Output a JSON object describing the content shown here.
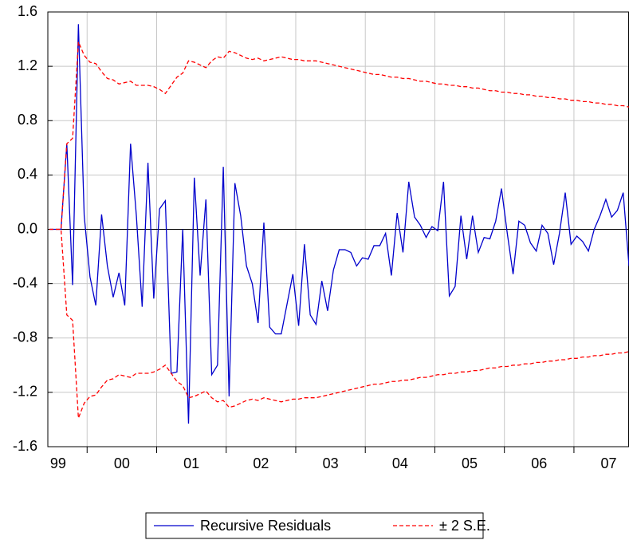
{
  "chart_data": {
    "type": "line",
    "categories": [
      null,
      "99",
      null,
      null,
      null,
      null,
      null,
      null,
      null,
      null,
      null,
      null,
      "00",
      null,
      null,
      null,
      null,
      null,
      null,
      null,
      null,
      null,
      null,
      null,
      "01",
      null,
      null,
      null,
      null,
      null,
      null,
      null,
      null,
      null,
      null,
      null,
      "02",
      null,
      null,
      null,
      null,
      null,
      null,
      null,
      null,
      null,
      null,
      null,
      "03",
      null,
      null,
      null,
      null,
      null,
      null,
      null,
      null,
      null,
      null,
      null,
      "04",
      null,
      null,
      null,
      null,
      null,
      null,
      null,
      null,
      null,
      null,
      null,
      "05",
      null,
      null,
      null,
      null,
      null,
      null,
      null,
      null,
      null,
      null,
      null,
      "06",
      null,
      null,
      null,
      null,
      null,
      null,
      null,
      null,
      null,
      null,
      null,
      "07",
      null,
      null,
      null,
      null
    ],
    "series": [
      {
        "name": "Recursive Residuals",
        "color": "#0000cc",
        "values": [
          0,
          0,
          0,
          0.63,
          -0.41,
          1.51,
          0.1,
          -0.35,
          -0.56,
          0.11,
          -0.27,
          -0.5,
          -0.32,
          -0.56,
          0.63,
          0.1,
          -0.57,
          0.49,
          -0.51,
          0.15,
          0.21,
          -1.06,
          -1.05,
          0.0,
          -1.43,
          0.38,
          -0.34,
          0.22,
          -1.07,
          -1.0,
          0.46,
          -1.23,
          0.34,
          0.1,
          -0.27,
          -0.4,
          -0.69,
          0.05,
          -0.72,
          -0.77,
          -0.77,
          -0.55,
          -0.33,
          -0.71,
          -0.11,
          -0.63,
          -0.7,
          -0.38,
          -0.6,
          -0.3,
          -0.15,
          -0.15,
          -0.17,
          -0.27,
          -0.21,
          -0.22,
          -0.12,
          -0.12,
          -0.03,
          -0.34,
          0.12,
          -0.17,
          0.35,
          0.09,
          0.03,
          -0.06,
          0.02,
          -0.01,
          0.35,
          -0.49,
          -0.42,
          0.1,
          -0.22,
          0.1,
          -0.17,
          -0.06,
          -0.07,
          0.06,
          0.3,
          -0.03,
          -0.33,
          0.06,
          0.03,
          -0.1,
          -0.16,
          0.03,
          -0.03,
          -0.26,
          -0.03,
          0.27,
          -0.11,
          -0.05,
          -0.09,
          -0.16,
          0.0,
          0.1,
          0.22,
          0.09,
          0.14,
          0.27,
          -0.27
        ]
      },
      {
        "name": "± 2 S.E.",
        "color": "#ff0000",
        "dashed": true,
        "values": [
          0,
          0,
          0,
          0.63,
          0.67,
          1.38,
          1.28,
          1.23,
          1.22,
          1.16,
          1.11,
          1.1,
          1.07,
          1.08,
          1.09,
          1.06,
          1.06,
          1.06,
          1.05,
          1.03,
          1.0,
          1.06,
          1.12,
          1.15,
          1.24,
          1.23,
          1.21,
          1.19,
          1.24,
          1.27,
          1.26,
          1.31,
          1.3,
          1.28,
          1.26,
          1.25,
          1.26,
          1.24,
          1.25,
          1.26,
          1.27,
          1.26,
          1.25,
          1.25,
          1.24,
          1.24,
          1.24,
          1.23,
          1.22,
          1.21,
          1.2,
          1.19,
          1.18,
          1.17,
          1.16,
          1.15,
          1.14,
          1.14,
          1.13,
          1.12,
          1.12,
          1.11,
          1.11,
          1.1,
          1.09,
          1.09,
          1.08,
          1.07,
          1.07,
          1.06,
          1.06,
          1.05,
          1.05,
          1.04,
          1.04,
          1.03,
          1.02,
          1.02,
          1.01,
          1.01,
          1.0,
          1.0,
          0.99,
          0.99,
          0.98,
          0.98,
          0.97,
          0.97,
          0.96,
          0.96,
          0.95,
          0.95,
          0.94,
          0.94,
          0.93,
          0.93,
          0.92,
          0.92,
          0.91,
          0.91,
          0.9
        ],
        "lower_values": [
          0,
          0,
          0,
          -0.63,
          -0.67,
          -1.39,
          -1.28,
          -1.23,
          -1.22,
          -1.16,
          -1.11,
          -1.1,
          -1.07,
          -1.08,
          -1.09,
          -1.06,
          -1.06,
          -1.06,
          -1.05,
          -1.03,
          -1.0,
          -1.06,
          -1.12,
          -1.15,
          -1.24,
          -1.23,
          -1.21,
          -1.19,
          -1.24,
          -1.27,
          -1.26,
          -1.31,
          -1.3,
          -1.28,
          -1.26,
          -1.25,
          -1.26,
          -1.24,
          -1.25,
          -1.26,
          -1.27,
          -1.26,
          -1.25,
          -1.25,
          -1.24,
          -1.24,
          -1.24,
          -1.23,
          -1.22,
          -1.21,
          -1.2,
          -1.19,
          -1.18,
          -1.17,
          -1.16,
          -1.15,
          -1.14,
          -1.14,
          -1.13,
          -1.12,
          -1.12,
          -1.11,
          -1.11,
          -1.1,
          -1.09,
          -1.09,
          -1.08,
          -1.07,
          -1.07,
          -1.06,
          -1.06,
          -1.05,
          -1.05,
          -1.04,
          -1.04,
          -1.03,
          -1.02,
          -1.02,
          -1.01,
          -1.01,
          -1.0,
          -1.0,
          -0.99,
          -0.99,
          -0.98,
          -0.98,
          -0.97,
          -0.97,
          -0.96,
          -0.96,
          -0.95,
          -0.95,
          -0.94,
          -0.94,
          -0.93,
          -0.93,
          -0.92,
          -0.92,
          -0.91,
          -0.91,
          -0.9
        ]
      }
    ],
    "ylim": [
      -1.6,
      1.6
    ],
    "yticks": [
      {
        "value": -1.6,
        "label": "-1.6"
      },
      {
        "value": -1.2,
        "label": "-1.2"
      },
      {
        "value": -0.8,
        "label": "-0.8"
      },
      {
        "value": -0.4,
        "label": "-0.4"
      },
      {
        "value": 0,
        "label": "0.0"
      },
      {
        "value": 0.4,
        "label": "0.4"
      },
      {
        "value": 0.8,
        "label": "0.8"
      },
      {
        "value": 1.2,
        "label": "1.2"
      },
      {
        "value": 1.6,
        "label": "1.6"
      }
    ],
    "grid": true,
    "legend": "bottom"
  }
}
